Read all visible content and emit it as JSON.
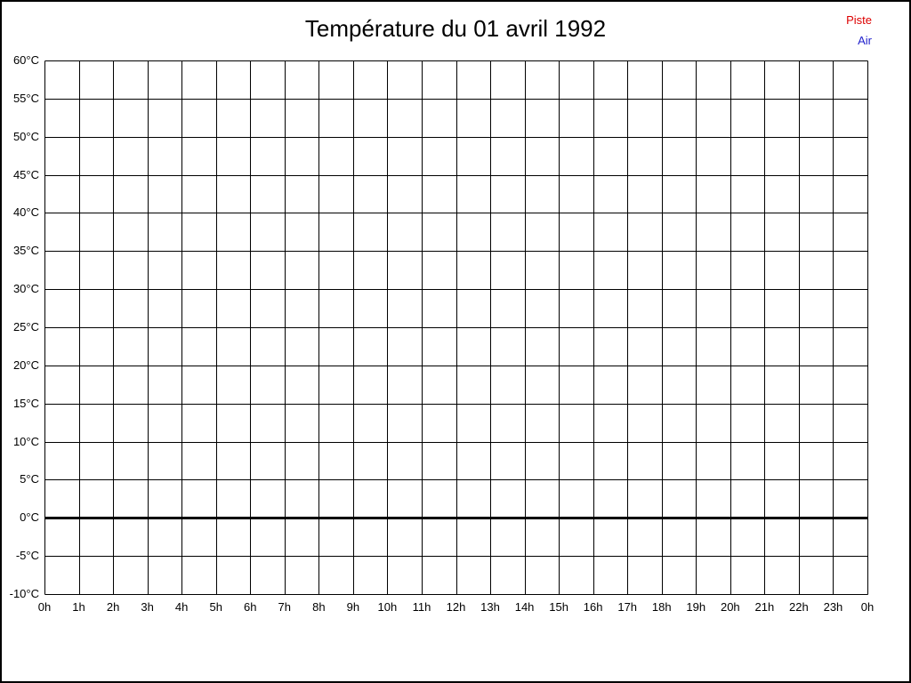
{
  "title": "Température du 01 avril 1992",
  "legend": {
    "position": "top-right",
    "items": [
      {
        "label": "Piste",
        "color": "#dd0000"
      },
      {
        "label": "Air",
        "color": "#2222cc"
      }
    ]
  },
  "chart_data": {
    "type": "line",
    "title": "Température du 01 avril 1992",
    "xlabel": "",
    "ylabel": "",
    "x_unit": "hours",
    "xlim": [
      0,
      24
    ],
    "ylim": [
      -10,
      60
    ],
    "y_tick_step": 5,
    "x_tick_hours": [
      0,
      1,
      2,
      3,
      4,
      5,
      6,
      7,
      8,
      9,
      10,
      11,
      12,
      13,
      14,
      15,
      16,
      17,
      18,
      19,
      20,
      21,
      22,
      23,
      24
    ],
    "x_tick_labels": [
      "0h",
      "1h",
      "2h",
      "3h",
      "4h",
      "5h",
      "6h",
      "7h",
      "8h",
      "9h",
      "10h",
      "11h",
      "12h",
      "13h",
      "14h",
      "15h",
      "16h",
      "17h",
      "18h",
      "19h",
      "20h",
      "21h",
      "22h",
      "23h",
      "0h"
    ],
    "y_tick_values": [
      60,
      55,
      50,
      45,
      40,
      35,
      30,
      25,
      20,
      15,
      10,
      5,
      0,
      -5,
      -10
    ],
    "y_tick_labels": [
      "60°C",
      "55°C",
      "50°C",
      "45°C",
      "40°C",
      "35°C",
      "30°C",
      "25°C",
      "20°C",
      "15°C",
      "10°C",
      "5°C",
      "0°C",
      "-5°C",
      "-10°C"
    ],
    "grid": true,
    "grid_color": "#000000",
    "zero_line": {
      "value": 0,
      "color": "#000000",
      "thickness": 3
    },
    "legend_position": "top-right",
    "series": [
      {
        "name": "Piste",
        "color": "#dd0000",
        "values": []
      },
      {
        "name": "Air",
        "color": "#2222cc",
        "values": []
      }
    ]
  }
}
